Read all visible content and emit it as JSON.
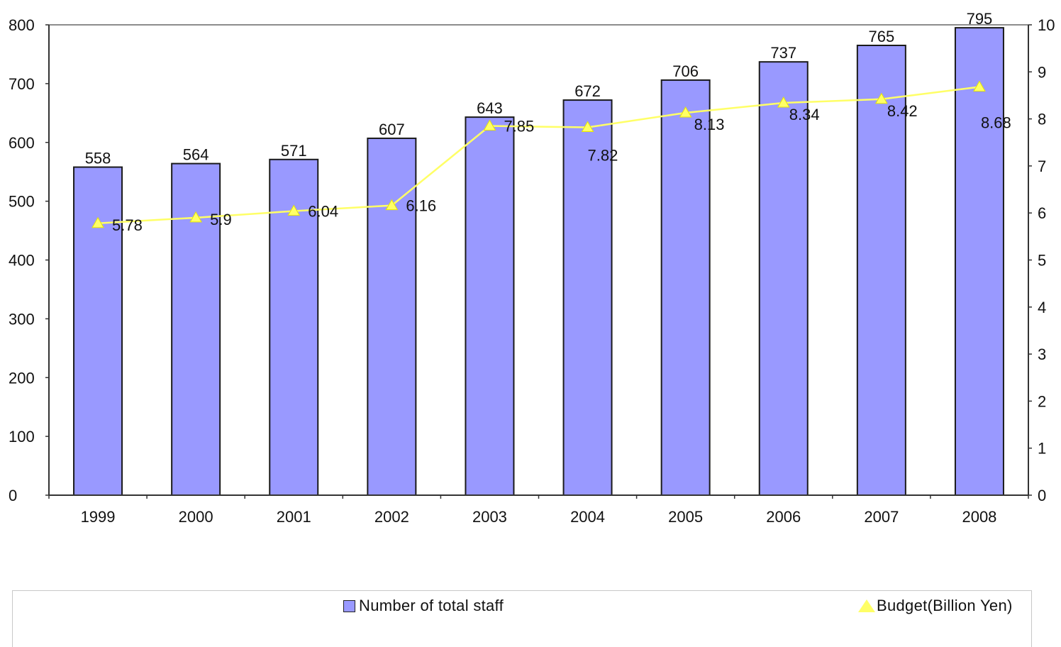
{
  "chart_data": {
    "type": "bar",
    "categories": [
      "1999",
      "2000",
      "2001",
      "2002",
      "2003",
      "2004",
      "2005",
      "2006",
      "2007",
      "2008"
    ],
    "series": [
      {
        "name": "Number of total staff",
        "type": "bar",
        "axis": "left",
        "values": [
          558,
          564,
          571,
          607,
          643,
          672,
          706,
          737,
          765,
          795
        ],
        "labels": [
          "558",
          "564",
          "571",
          "607",
          "643",
          "672",
          "706",
          "737",
          "765",
          "795"
        ],
        "color": "#9999ff"
      },
      {
        "name": "Budget(Billion Yen)",
        "type": "line",
        "axis": "right",
        "values": [
          5.78,
          5.9,
          6.04,
          6.16,
          7.85,
          7.82,
          8.13,
          8.34,
          8.42,
          8.68
        ],
        "labels": [
          "5.78",
          "5.9",
          "6.04",
          "6.16",
          "7.85",
          "7.82",
          "8.13",
          "8.34",
          "8.42",
          "8.68"
        ],
        "color": "#ffff66",
        "marker": "triangle"
      }
    ],
    "y_left": {
      "lim": [
        0,
        800
      ],
      "ticks": [
        "0",
        "100",
        "200",
        "300",
        "400",
        "500",
        "600",
        "700",
        "800"
      ]
    },
    "y_right": {
      "lim": [
        0,
        10
      ],
      "ticks": [
        "0",
        "1",
        "2",
        "3",
        "4",
        "5",
        "6",
        "7",
        "8",
        "9",
        "10"
      ]
    },
    "grid": false,
    "legend_placement": "bottom"
  },
  "legend": {
    "staff_label": "Number of total staff",
    "budget_label": "Budget(Billion Yen)"
  }
}
